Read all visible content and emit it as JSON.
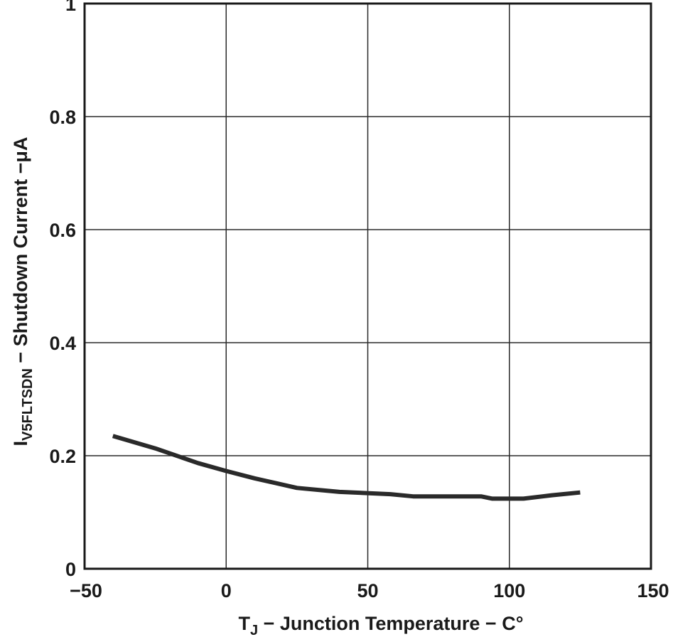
{
  "chart_data": {
    "type": "line",
    "xlabel": {
      "main": "T",
      "sub": "J",
      "rest": " − Junction Temperature − C°"
    },
    "ylabel": {
      "main": "I",
      "sub": "V5FLTSDN",
      "rest": " − Shutdown Current −μA"
    },
    "xlim": [
      -50,
      150
    ],
    "ylim": [
      0,
      1
    ],
    "x_ticks": [
      -50,
      0,
      50,
      100,
      150
    ],
    "x_tick_labels": [
      "−50",
      "0",
      "50",
      "100",
      "150"
    ],
    "y_ticks": [
      0,
      0.2,
      0.4,
      0.6,
      0.8,
      1
    ],
    "y_tick_labels": [
      "0",
      "0.2",
      "0.4",
      "0.6",
      "0.8",
      "1"
    ],
    "grid": true,
    "series": [
      {
        "color": "#2a2a2a",
        "x": [
          -40,
          -25,
          -10,
          0,
          10,
          25,
          40,
          58,
          66,
          80,
          90,
          94,
          105,
          115,
          125
        ],
        "y": [
          0.235,
          0.213,
          0.187,
          0.173,
          0.16,
          0.143,
          0.136,
          0.132,
          0.128,
          0.128,
          0.128,
          0.124,
          0.124,
          0.13,
          0.135
        ]
      }
    ]
  }
}
